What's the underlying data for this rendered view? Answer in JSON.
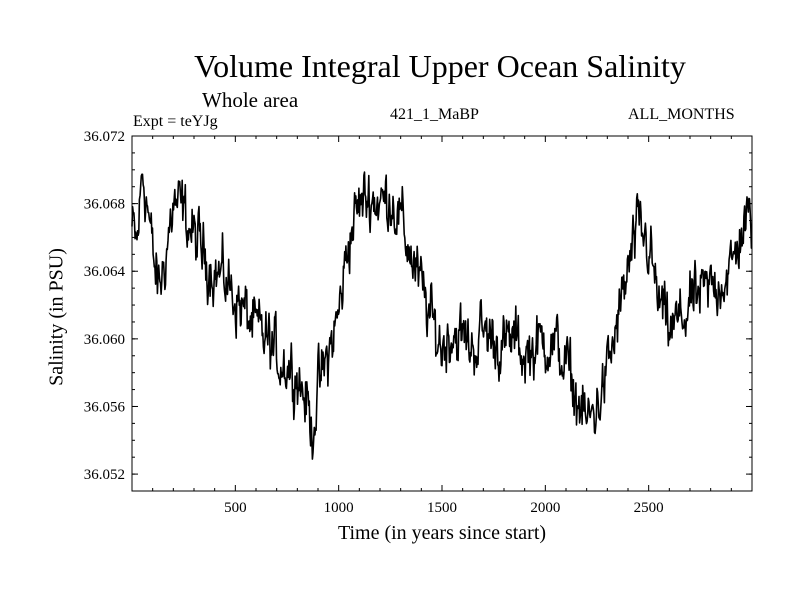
{
  "chart_data": {
    "type": "line",
    "title": "Volume Integral Upper Ocean Salinity",
    "subtitle": "Whole area",
    "experiment_label": "Expt = teYJg",
    "run_label": "421_1_MaBP",
    "period_label": "ALL_MONTHS",
    "xlabel": "Time (in years since start)",
    "ylabel": "Salinity (in PSU)",
    "xlim": [
      0,
      3000
    ],
    "ylim": [
      36.051,
      36.072
    ],
    "xticks": [
      500,
      1000,
      1500,
      2000,
      2500
    ],
    "yticks": [
      36.052,
      36.056,
      36.06,
      36.064,
      36.068,
      36.072
    ],
    "ytick_labels": [
      "36.052",
      "36.056",
      "36.060",
      "36.064",
      "36.068",
      "36.072"
    ],
    "grid": false,
    "line_color": "#000000",
    "series": [
      {
        "name": "Salinity",
        "x": [
          0,
          25,
          50,
          75,
          100,
          125,
          150,
          200,
          250,
          300,
          350,
          400,
          450,
          500,
          550,
          600,
          650,
          700,
          750,
          800,
          850,
          870,
          900,
          950,
          1000,
          1050,
          1100,
          1150,
          1200,
          1250,
          1300,
          1350,
          1400,
          1450,
          1500,
          1550,
          1600,
          1650,
          1700,
          1750,
          1800,
          1850,
          1900,
          1950,
          2000,
          2050,
          2100,
          2150,
          2200,
          2250,
          2300,
          2350,
          2400,
          2450,
          2500,
          2550,
          2600,
          2650,
          2700,
          2750,
          2800,
          2850,
          2900,
          2950,
          3000
        ],
        "y": [
          36.0665,
          36.0655,
          36.07,
          36.068,
          36.065,
          36.063,
          36.064,
          36.068,
          36.0675,
          36.066,
          36.065,
          36.064,
          36.0635,
          36.0625,
          36.0615,
          36.0605,
          36.06,
          36.059,
          36.0585,
          36.058,
          36.056,
          36.0545,
          36.057,
          36.059,
          36.0615,
          36.066,
          36.068,
          36.0685,
          36.068,
          36.0685,
          36.067,
          36.065,
          36.063,
          36.061,
          36.0595,
          36.0605,
          36.06,
          36.0595,
          36.0605,
          36.06,
          36.0595,
          36.06,
          36.059,
          36.0595,
          36.06,
          36.0595,
          36.0585,
          36.0565,
          36.055,
          36.056,
          36.058,
          36.061,
          36.064,
          36.0665,
          36.0655,
          36.062,
          36.0605,
          36.061,
          36.062,
          36.0625,
          36.063,
          36.0635,
          36.064,
          36.0665,
          36.067
        ]
      }
    ]
  }
}
